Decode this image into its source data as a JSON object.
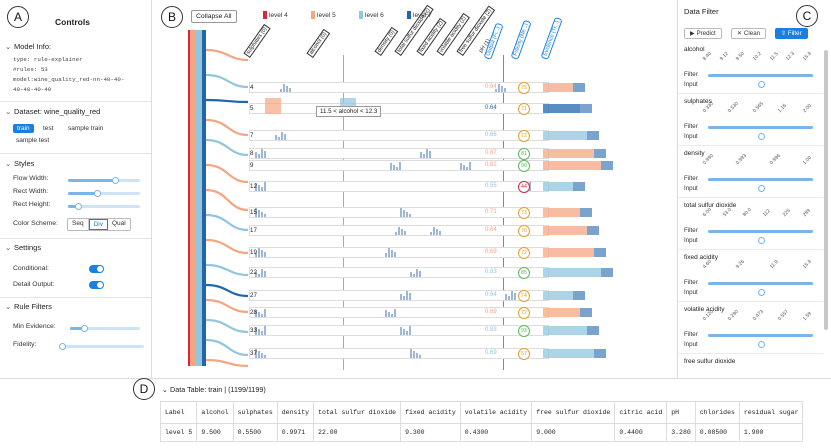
{
  "labels": {
    "a": "A",
    "b": "B",
    "c": "C",
    "d": "D"
  },
  "controls": {
    "title": "Controls",
    "model_info": {
      "header": "Model Info:",
      "type": "type: rule-explainer",
      "rules": "#rules: 53",
      "model": "model:wine_quality_red-nn-40-40-",
      "model2": "40-40-40-40"
    },
    "dataset": {
      "header": "Dataset: wine_quality_red",
      "tabs": [
        "train",
        "test",
        "sample train",
        "sample test"
      ],
      "active_tab": "train"
    },
    "styles": {
      "header": "Styles",
      "flow_width": "Flow Width:",
      "rect_width": "Rect Width:",
      "rect_height": "Rect Height:",
      "flow_width_value": 0.66,
      "rect_width_value": 0.41,
      "rect_height_value": 0.14,
      "color_scheme": "Color Scheme:",
      "schemes": [
        "Seq",
        "Div",
        "Qual"
      ],
      "active_scheme": "Div"
    },
    "settings": {
      "header": "Settings",
      "conditional": "Conditional:",
      "detail_output": "Detail Output:",
      "conditional_on": true,
      "detail_output_on": true
    },
    "rule_filters": {
      "header": "Rule Filters",
      "min_evidence": "Min Evidence:",
      "fidelity": "Fidelity:",
      "min_evidence_value": 0.2,
      "fidelity_value": 0.03
    }
  },
  "main": {
    "collapse_label": "Collapse All",
    "legend": [
      {
        "label": "level 4",
        "color": "#d62839"
      },
      {
        "label": "level 5",
        "color": "#f4a582"
      },
      {
        "label": "level 6",
        "color": "#92c5de"
      },
      {
        "label": "level 7",
        "color": "#2166ac"
      }
    ],
    "features": [
      "sulphates (0)",
      "alcohol (0)",
      "density (0)",
      "total sulfur dioxide (2)",
      "fixed acidity (2)",
      "volatile acidity (2)",
      "free sulfur dioxide (2)",
      "pH (1)"
    ],
    "col_heads": [
      "Output (Fi...)",
      "Fidelity (Ne...)",
      "Evidence (Tr...)"
    ],
    "tooltip": "11.5 < alcohol < 12.3",
    "rules": [
      {
        "num": "4",
        "output": "0.64",
        "fidelity": "75",
        "out_color": "#f4a582",
        "fid_color": "#e0a030"
      },
      {
        "num": "5",
        "output": "0.64",
        "fidelity": "71",
        "out_color": "#2166ac",
        "fid_color": "#e0a030"
      },
      {
        "num": "7",
        "output": "0.66",
        "fidelity": "72",
        "out_color": "#92c5de",
        "fid_color": "#e0a030"
      },
      {
        "num": "8",
        "output": "0.87",
        "fidelity": "81",
        "out_color": "#f4a582",
        "fid_color": "#5cb85c"
      },
      {
        "num": "9",
        "output": "0.82",
        "fidelity": "90",
        "out_color": "#f4a582",
        "fid_color": "#5cb85c"
      },
      {
        "num": "12",
        "output": "0.55",
        "fidelity": "44",
        "out_color": "#92c5de",
        "fid_color": "#d62839"
      },
      {
        "num": "15",
        "output": "0.71",
        "fidelity": "73",
        "out_color": "#f4a582",
        "fid_color": "#e0a030"
      },
      {
        "num": "17",
        "output": "0.64",
        "fidelity": "70",
        "out_color": "#f4a582",
        "fid_color": "#e0a030"
      },
      {
        "num": "19",
        "output": "0.69",
        "fidelity": "72",
        "out_color": "#f4a582",
        "fid_color": "#e0a030"
      },
      {
        "num": "22",
        "output": "0.83",
        "fidelity": "85",
        "out_color": "#92c5de",
        "fid_color": "#5cb85c"
      },
      {
        "num": "27",
        "output": "0.64",
        "fidelity": "74",
        "out_color": "#92c5de",
        "fid_color": "#e0a030"
      },
      {
        "num": "28",
        "output": "0.69",
        "fidelity": "72",
        "out_color": "#f4a582",
        "fid_color": "#e0a030"
      },
      {
        "num": "33",
        "output": "0.83",
        "fidelity": "93",
        "out_color": "#92c5de",
        "fid_color": "#5cb85c"
      },
      {
        "num": "37",
        "output": "0.69",
        "fidelity": "57",
        "out_color": "#92c5de",
        "fid_color": "#e0a030"
      }
    ]
  },
  "filter": {
    "title": "Data Filter",
    "buttons": [
      "Predict",
      "Clean",
      "Filter"
    ],
    "filter_label": "Filter",
    "input_label": "Input",
    "features": [
      {
        "name": "alcohol",
        "ticks": [
          "8.40",
          "9.12",
          "9.50",
          "10.2",
          "11.5",
          "12.3",
          "15.9"
        ]
      },
      {
        "name": "sulphates",
        "ticks": [
          "0.330",
          "0.530",
          "0.565",
          "1.16",
          "2.00"
        ]
      },
      {
        "name": "density",
        "ticks": [
          "0.990",
          "0.993",
          "0.996",
          "1.00"
        ]
      },
      {
        "name": "total sulfur dioxide",
        "ticks": [
          "6.00",
          "53.0",
          "80.0",
          "112",
          "225",
          "289"
        ]
      },
      {
        "name": "fixed acidity",
        "ticks": [
          "4.60",
          "9.26",
          "11.9",
          "15.9"
        ]
      },
      {
        "name": "volatile acidity",
        "ticks": [
          "0.120",
          "0.290",
          "0.473",
          "0.557",
          "1.59"
        ]
      },
      {
        "name": "free sulfur dioxide",
        "ticks": []
      }
    ]
  },
  "table": {
    "title": "Data Table: train | (1199/1199)",
    "headers": [
      "Label",
      "alcohol",
      "sulphates",
      "density",
      "total sulfur dioxide",
      "fixed acidity",
      "volatile acidity",
      "free sulfur dioxide",
      "citric acid",
      "pH",
      "chlorides",
      "residual sugar"
    ],
    "rows": [
      [
        "level 5",
        "9.500",
        "0.5500",
        "0.9971",
        "22.00",
        "9.300",
        "0.4300",
        "9.000",
        "0.4400",
        "3.280",
        "0.08500",
        "1.900"
      ]
    ]
  }
}
